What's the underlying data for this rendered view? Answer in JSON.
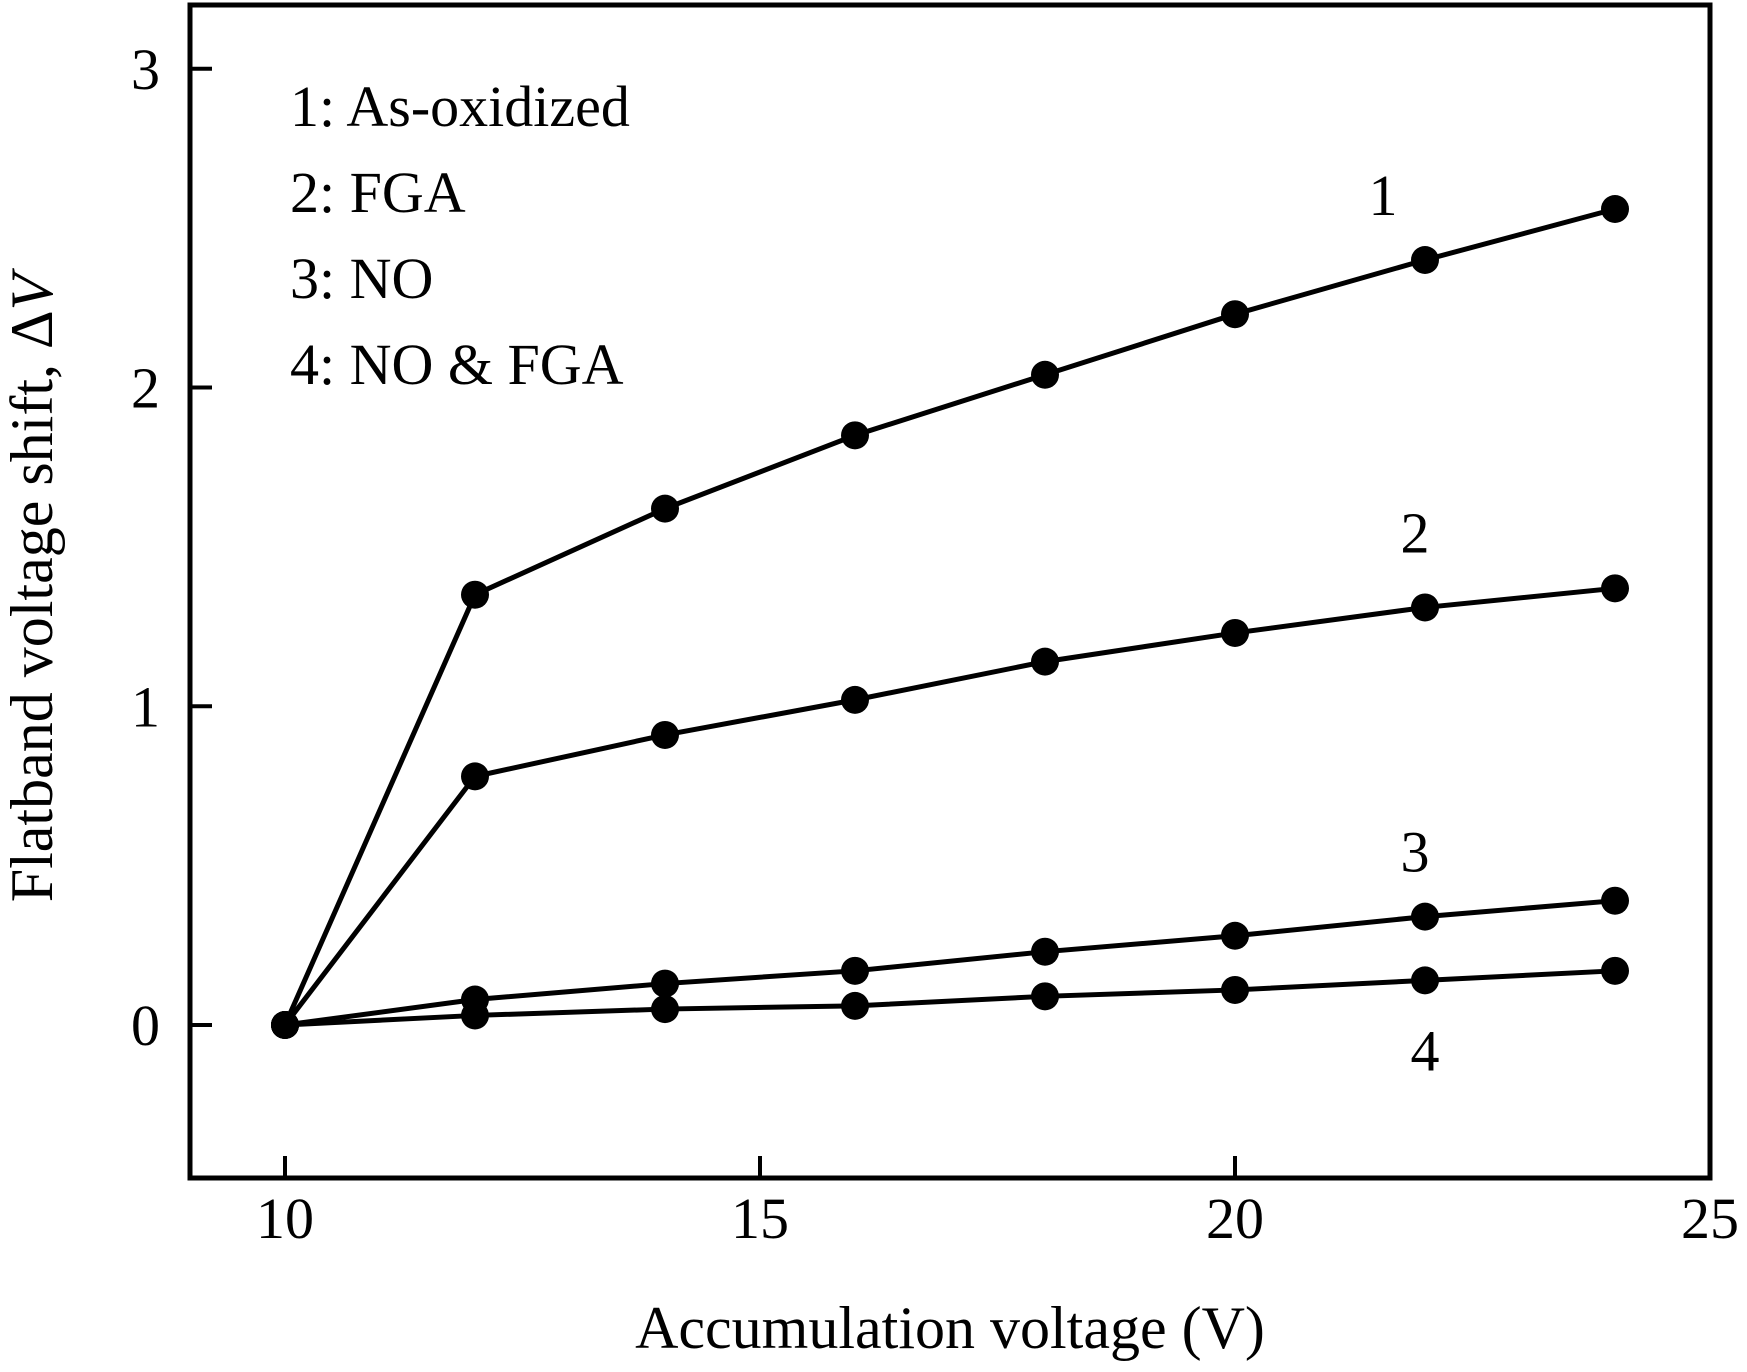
{
  "chart_data": {
    "type": "line",
    "xlabel": "Accumulation voltage (V)",
    "ylabel_text": "Flatband voltage shift, Δ",
    "ylabel_var": "V",
    "xlim": [
      9,
      25
    ],
    "ylim": [
      -0.48,
      3.2
    ],
    "x_ticks": [
      10,
      15,
      20,
      25
    ],
    "y_ticks": [
      0,
      1,
      2,
      3
    ],
    "grid": false,
    "legend_position": "top-left",
    "legend": [
      "1: As-oxidized",
      "2: FGA",
      "3: NO",
      "4: NO & FGA"
    ],
    "x": [
      10,
      12,
      14,
      16,
      18,
      20,
      22,
      24
    ],
    "series": [
      {
        "name": "As-oxidized",
        "label": "1",
        "values": [
          0,
          1.35,
          1.62,
          1.85,
          2.04,
          2.23,
          2.4,
          2.56
        ]
      },
      {
        "name": "FGA",
        "label": "2",
        "values": [
          0,
          0.78,
          0.91,
          1.02,
          1.14,
          1.23,
          1.31,
          1.37
        ]
      },
      {
        "name": "NO",
        "label": "3",
        "values": [
          0,
          0.08,
          0.13,
          0.17,
          0.23,
          0.28,
          0.34,
          0.39
        ]
      },
      {
        "name": "NO & FGA",
        "label": "4",
        "values": [
          0,
          0.03,
          0.05,
          0.06,
          0.09,
          0.11,
          0.14,
          0.17
        ]
      }
    ],
    "color": "#000000"
  }
}
